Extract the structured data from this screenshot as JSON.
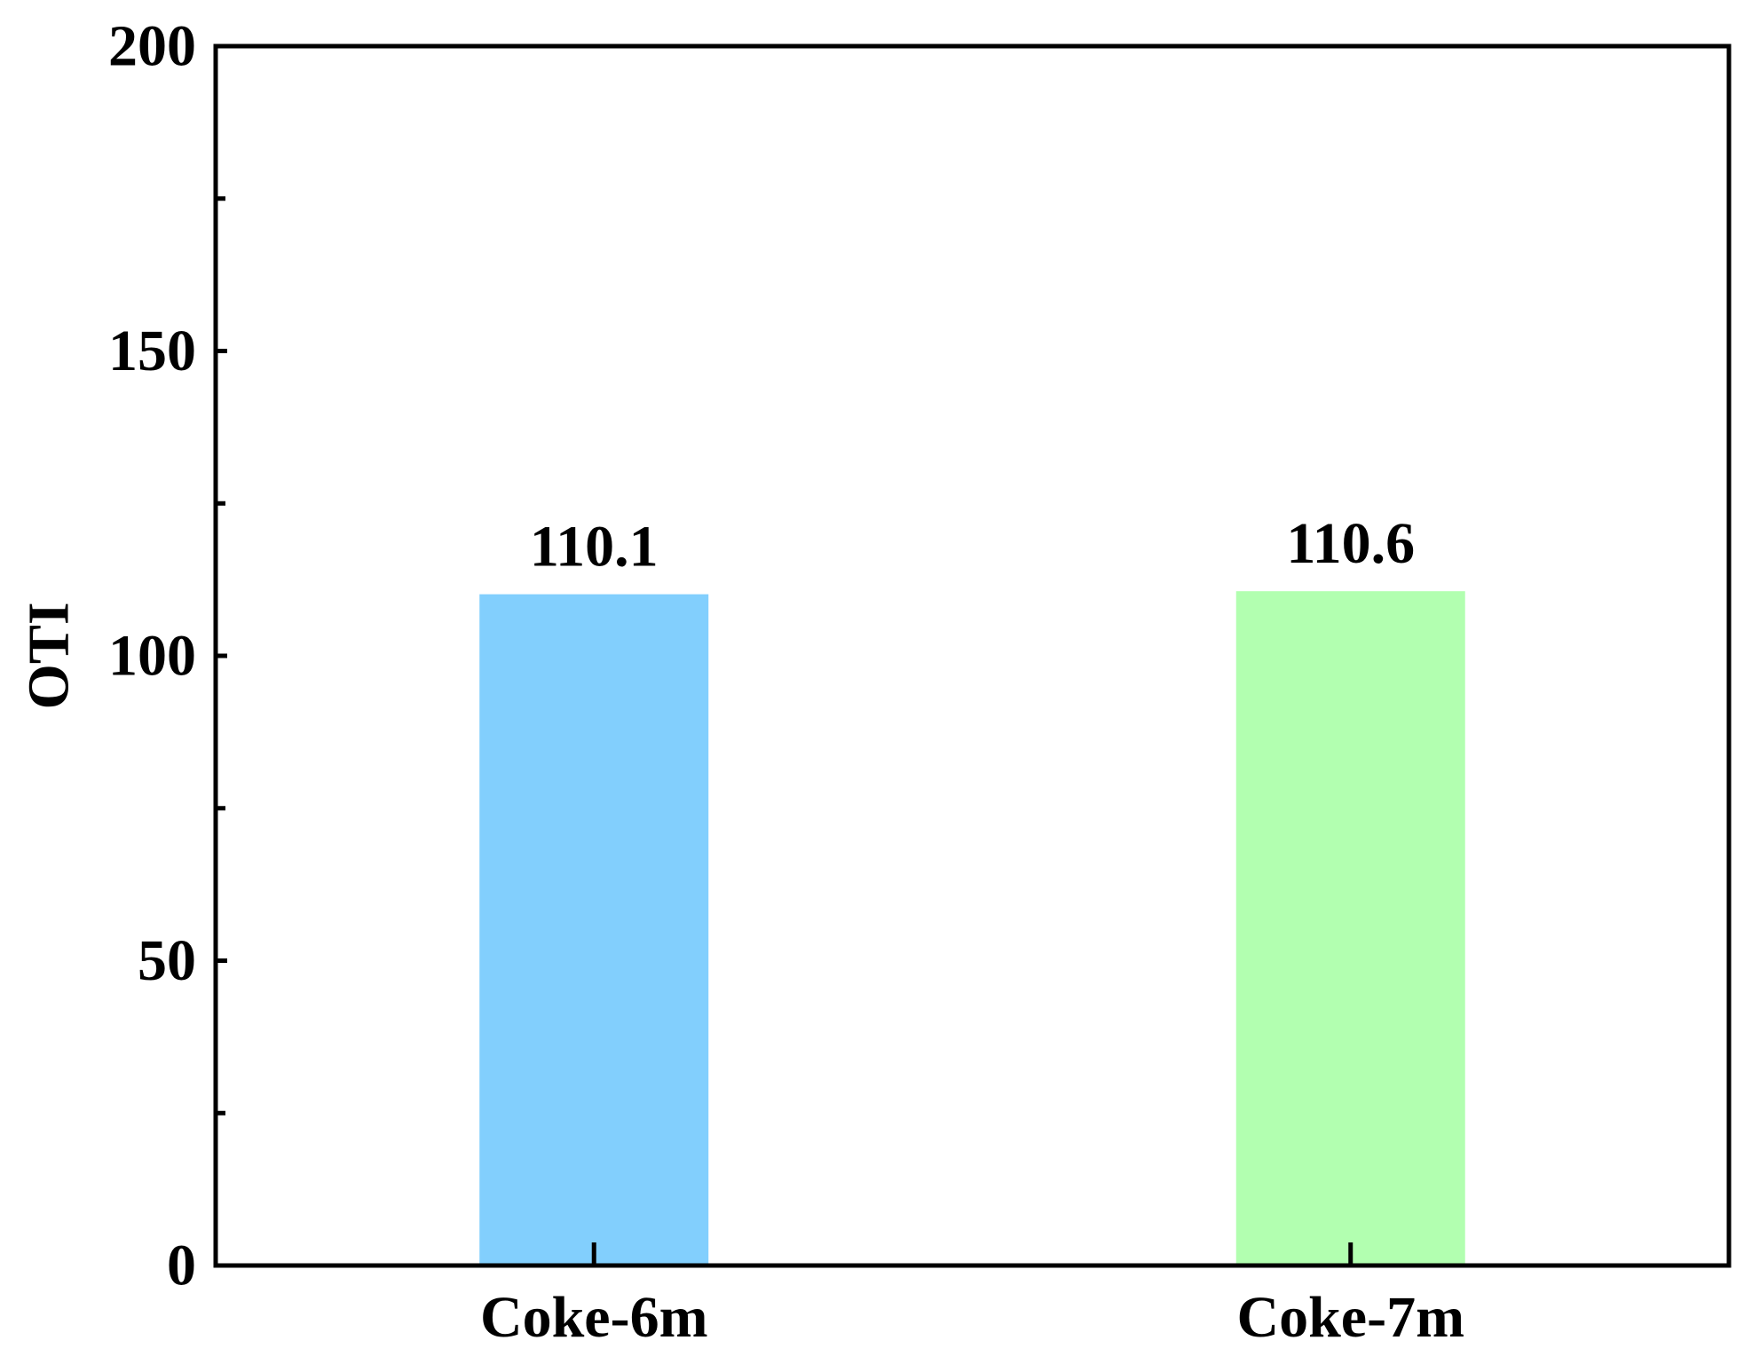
{
  "chart_data": {
    "type": "bar",
    "title": "",
    "xlabel": "",
    "ylabel": "OTI",
    "categories": [
      "Coke-6m",
      "Coke-7m"
    ],
    "values": [
      110.1,
      110.6
    ],
    "value_labels": [
      "110.1",
      "110.6"
    ],
    "bar_colors": [
      "#82CFFD",
      "#B2FFB0"
    ],
    "ylim": [
      0,
      200
    ],
    "yticks": [
      0,
      50,
      100,
      150,
      200
    ],
    "ytick_labels": [
      "0",
      "50",
      "100",
      "150",
      "200"
    ],
    "y_minor_ticks": [
      25,
      75,
      125,
      175
    ],
    "grid": false,
    "legend": "none"
  }
}
